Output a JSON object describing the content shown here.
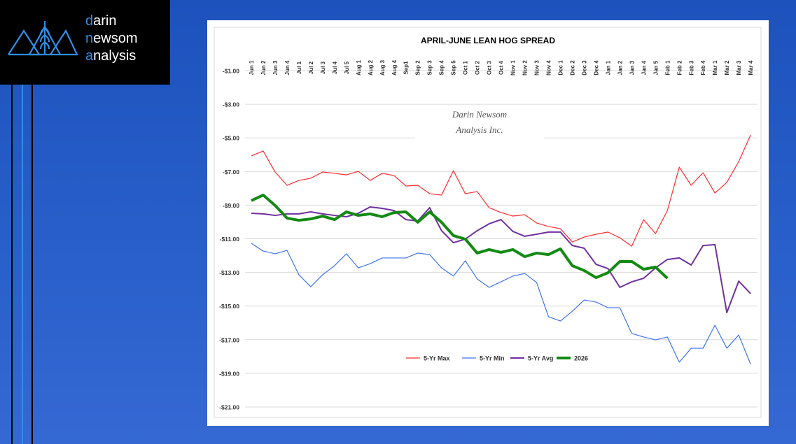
{
  "logo": {
    "lines": [
      "darin",
      "newsom",
      "analysis"
    ]
  },
  "chart_data": {
    "type": "line",
    "title": "APRIL-JUNE LEAN HOG SPREAD",
    "annotations": [
      "Darin Newsom",
      "Analysis Inc."
    ],
    "categories": [
      "Jun 1",
      "Jun 2",
      "Jun 3",
      "Jun 4",
      "Jul 1",
      "Jul 2",
      "Jul 3",
      "Jul 4",
      "Jul 5",
      "Aug 1",
      "Aug 2",
      "Aug 3",
      "Aug 4",
      "Sep1",
      "Sep 2",
      "Sep 3",
      "Sep 4",
      "Sep 5",
      "Oct 1",
      "Oct 2",
      "Oct 3",
      "Oct 4",
      "Nov 1",
      "Nov 2",
      "Nov 3",
      "Nov 4",
      "Dec 1",
      "Dec 2",
      "Dec 3",
      "Dec 4",
      "Jan 1",
      "Jan 2",
      "Jan 3",
      "Jan 4",
      "Jan 5",
      "Feb 1",
      "Feb 2",
      "Feb 3",
      "Feb 4",
      "Mar 1",
      "Mar 2",
      "Mar 3",
      "Mar 4"
    ],
    "ylim": [
      -21,
      -1
    ],
    "yticks": [
      {
        "value": -1,
        "label": "-$1.00"
      },
      {
        "value": -3,
        "label": "-$3.00"
      },
      {
        "value": -5,
        "label": "-$5.00"
      },
      {
        "value": -7,
        "label": "-$7.00"
      },
      {
        "value": -9,
        "label": "-$9.00"
      },
      {
        "value": -11,
        "label": "-$11.00"
      },
      {
        "value": -13,
        "label": "-$13.00"
      },
      {
        "value": -15,
        "label": "-$15.00"
      },
      {
        "value": -17,
        "label": "-$17.00"
      },
      {
        "value": -19,
        "label": "-$19.00"
      },
      {
        "value": -21,
        "label": "-$21.00"
      }
    ],
    "grid": true,
    "series": [
      {
        "name": "5-Yr Max",
        "color": "#ff2b2b",
        "width": 1.2,
        "values": [
          -6.07,
          -5.78,
          -7.03,
          -7.82,
          -7.53,
          -7.4,
          -7.03,
          -7.11,
          -7.2,
          -6.99,
          -7.53,
          -7.11,
          -7.24,
          -7.86,
          -7.82,
          -8.32,
          -8.4,
          -6.95,
          -8.32,
          -8.19,
          -9.15,
          -9.44,
          -9.65,
          -9.57,
          -10.06,
          -10.27,
          -10.4,
          -11.19,
          -10.9,
          -10.73,
          -10.6,
          -10.94,
          -11.44,
          -9.86,
          -10.69,
          -9.32,
          -6.74,
          -7.82,
          -7.07,
          -8.28,
          -7.65,
          -6.41,
          -4.83
        ]
      },
      {
        "name": "5-Yr Min",
        "color": "#3d74f2",
        "width": 1.2,
        "values": [
          -11.27,
          -11.73,
          -11.89,
          -11.69,
          -13.14,
          -13.85,
          -13.14,
          -12.6,
          -11.89,
          -12.73,
          -12.48,
          -12.14,
          -12.14,
          -12.14,
          -11.85,
          -11.94,
          -12.73,
          -13.22,
          -12.31,
          -13.39,
          -13.89,
          -13.56,
          -13.22,
          -13.06,
          -13.6,
          -15.64,
          -15.89,
          -15.31,
          -14.64,
          -14.76,
          -15.1,
          -15.1,
          -16.63,
          -16.84,
          -17.01,
          -16.84,
          -18.34,
          -17.51,
          -17.51,
          -16.14,
          -17.51,
          -16.72,
          -18.46
        ]
      },
      {
        "name": "5-Yr Avg",
        "color": "#7030a0",
        "width": 2,
        "values": [
          -9.48,
          -9.52,
          -9.61,
          -9.52,
          -9.52,
          -9.4,
          -9.52,
          -9.61,
          -9.69,
          -9.48,
          -9.11,
          -9.19,
          -9.32,
          -9.86,
          -9.94,
          -9.15,
          -10.52,
          -11.23,
          -11.02,
          -10.52,
          -10.11,
          -9.86,
          -10.56,
          -10.85,
          -10.73,
          -10.6,
          -10.6,
          -11.4,
          -11.56,
          -12.52,
          -12.77,
          -13.89,
          -13.56,
          -13.35,
          -12.73,
          -12.23,
          -12.14,
          -12.56,
          -11.4,
          -11.35,
          -15.39,
          -13.52,
          -14.26
        ]
      },
      {
        "name": "2026",
        "color": "#138a13",
        "width": 4,
        "values": [
          -8.73,
          -8.4,
          -9.02,
          -9.77,
          -9.9,
          -9.82,
          -9.65,
          -9.86,
          -9.4,
          -9.61,
          -9.52,
          -9.69,
          -9.44,
          -9.4,
          -10.02,
          -9.4,
          -10.02,
          -10.81,
          -11.02,
          -11.85,
          -11.64,
          -11.81,
          -11.64,
          -12.06,
          -11.85,
          -11.94,
          -11.6,
          -12.6,
          -12.89,
          -13.31,
          -13.02,
          -12.35,
          -12.35,
          -12.81,
          -12.68,
          -13.35,
          null,
          null,
          null,
          null,
          null,
          null,
          null
        ]
      }
    ]
  }
}
